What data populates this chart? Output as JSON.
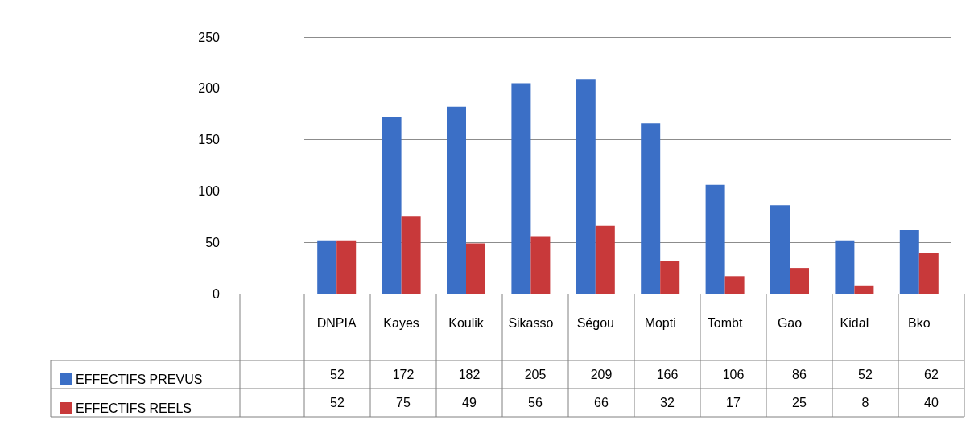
{
  "chart_data": {
    "type": "bar",
    "categories": [
      "DNPIA",
      "Kayes",
      "Koulik",
      "Sikasso",
      "Ségou",
      "Mopti",
      "Tombt",
      "Gao",
      "Kidal",
      "Bko"
    ],
    "series": [
      {
        "name": "EFFECTIFS PREVUS",
        "color": "#3b6fc6",
        "values": [
          52,
          172,
          182,
          205,
          209,
          166,
          106,
          86,
          52,
          62
        ]
      },
      {
        "name": "EFFECTIFS REELS",
        "color": "#c8393a",
        "values": [
          52,
          75,
          49,
          56,
          66,
          32,
          17,
          25,
          8,
          40
        ]
      }
    ],
    "ylim": [
      0,
      250
    ],
    "yticks": [
      0,
      50,
      100,
      150,
      200,
      250
    ],
    "grid": "y",
    "legend": "bottom left",
    "data_labels": true
  }
}
